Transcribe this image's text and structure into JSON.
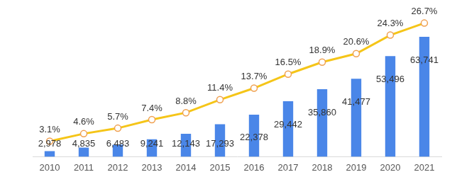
{
  "chart_data": {
    "type": "bar",
    "categories": [
      "2010",
      "2011",
      "2012",
      "2013",
      "2014",
      "2015",
      "2016",
      "2017",
      "2018",
      "2019",
      "2020",
      "2021"
    ],
    "series": [
      {
        "type": "bar",
        "color": "#4a86e8",
        "values": [
          2978,
          4835,
          6483,
          9241,
          12143,
          17293,
          22378,
          29442,
          35860,
          41477,
          53496,
          63741
        ],
        "value_labels": [
          "2,978",
          "4,835",
          "6,483",
          "9,241",
          "12,143",
          "17,293",
          "22,378",
          "29,442",
          "35,860",
          "41,477",
          "53,496",
          "63,741"
        ]
      },
      {
        "type": "line",
        "axis": "y2",
        "color": "#f5c518",
        "marker": "circle",
        "values": [
          3.1,
          4.6,
          5.7,
          7.4,
          8.8,
          11.4,
          13.7,
          16.5,
          18.9,
          20.6,
          24.3,
          26.7
        ],
        "value_labels": [
          "3.1%",
          "4.6%",
          "5.7%",
          "7.4%",
          "8.8%",
          "11.4%",
          "13.7%",
          "16.5%",
          "18.9%",
          "20.6%",
          "24.3%",
          "26.7%"
        ]
      }
    ],
    "ylim": [
      0,
      75000
    ],
    "y2lim": [
      0,
      28.2
    ],
    "grid": false,
    "data_labels": true,
    "tick_labels": "x"
  }
}
